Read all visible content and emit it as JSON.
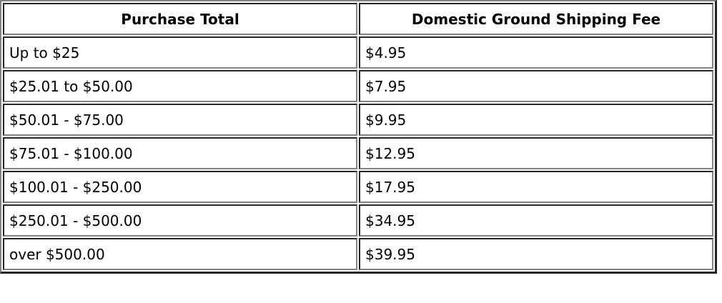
{
  "colors": {
    "frame_light": "#828282",
    "frame_dark": "#262626",
    "cell_dark": "#262626",
    "cell_light": "#828282",
    "text": "#000000",
    "bg": "#ffffff"
  },
  "table": {
    "columns": [
      {
        "label": "Purchase Total"
      },
      {
        "label": "Domestic Ground Shipping Fee"
      }
    ],
    "rows": [
      [
        "Up to $25",
        "$4.95"
      ],
      [
        "$25.01 to $50.00",
        "$7.95"
      ],
      [
        "$50.01 - $75.00",
        "$9.95"
      ],
      [
        "$75.01 - $100.00",
        "$12.95"
      ],
      [
        "$100.01 - $250.00",
        "$17.95"
      ],
      [
        "$250.01 - $500.00",
        "$34.95"
      ],
      [
        "over $500.00",
        "$39.95"
      ]
    ]
  }
}
